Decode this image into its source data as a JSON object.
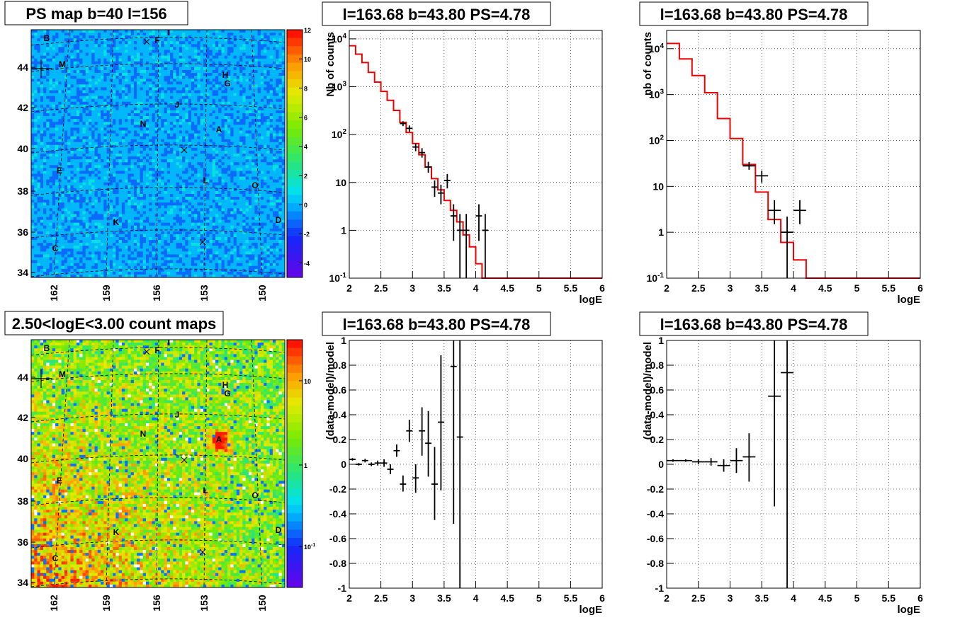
{
  "chart_data": [
    {
      "type": "heatmap",
      "title": "PS map b=40 l=156",
      "x_ticks": [
        "162",
        "159",
        "156",
        "153",
        "150"
      ],
      "y_ticks": [
        "44",
        "42",
        "40",
        "38",
        "36",
        "34"
      ],
      "colorbar_ticks": [
        "12",
        "10",
        "8",
        "6",
        "4",
        "2",
        "0",
        "-2",
        "-4"
      ],
      "colorbar_range": [
        -5,
        12
      ],
      "background_level": 0.35,
      "sources": [
        {
          "label": "B"
        },
        {
          "label": "I"
        },
        {
          "label": "F"
        },
        {
          "label": "M"
        },
        {
          "label": "H"
        },
        {
          "label": "G"
        },
        {
          "label": "J"
        },
        {
          "label": "N"
        },
        {
          "label": "A"
        },
        {
          "label": "E"
        },
        {
          "label": "L"
        },
        {
          "label": "O"
        },
        {
          "label": "K"
        },
        {
          "label": "D"
        },
        {
          "label": "C"
        }
      ]
    },
    {
      "type": "line",
      "title": "l=163.68 b=43.80 PS=4.78",
      "xlabel": "logE",
      "ylabel": "Nb of counts",
      "log_y": true,
      "xlim": [
        2,
        6
      ],
      "ylim": [
        0.1,
        15000
      ],
      "grid": true,
      "x_ticks": [
        "2",
        "2.5",
        "3",
        "3.5",
        "4",
        "4.5",
        "5",
        "5.5",
        "6"
      ],
      "y_ticks": [
        "10^4",
        "10^3",
        "10^2",
        "10",
        "1",
        "10^-1"
      ],
      "model_step": {
        "edges": [
          2.0,
          2.1,
          2.2,
          2.3,
          2.4,
          2.5,
          2.6,
          2.7,
          2.8,
          2.9,
          3.0,
          3.1,
          3.2,
          3.3,
          3.4,
          3.5,
          3.6,
          3.7,
          3.8,
          3.9,
          4.0,
          4.1,
          6.0
        ],
        "values": [
          7200,
          4800,
          3200,
          2000,
          1250,
          800,
          520,
          320,
          180,
          110,
          65,
          38,
          21,
          12,
          7,
          4.2,
          2.6,
          1.5,
          0.8,
          0.45,
          0.2,
          0.1
        ]
      },
      "data": [
        {
          "x": 2.85,
          "y": 170,
          "xerr": 0.05,
          "ylo": 150,
          "yhi": 190
        },
        {
          "x": 2.95,
          "y": 135,
          "xerr": 0.05,
          "ylo": 115,
          "yhi": 155
        },
        {
          "x": 3.05,
          "y": 55,
          "xerr": 0.05,
          "ylo": 45,
          "yhi": 65
        },
        {
          "x": 3.15,
          "y": 42,
          "xerr": 0.05,
          "ylo": 33,
          "yhi": 52
        },
        {
          "x": 3.25,
          "y": 21,
          "xerr": 0.05,
          "ylo": 16,
          "yhi": 27
        },
        {
          "x": 3.35,
          "y": 8,
          "xerr": 0.05,
          "ylo": 5,
          "yhi": 11
        },
        {
          "x": 3.45,
          "y": 6,
          "xerr": 0.05,
          "ylo": 3.5,
          "yhi": 9
        },
        {
          "x": 3.55,
          "y": 11,
          "xerr": 0.05,
          "ylo": 7.5,
          "yhi": 15
        },
        {
          "x": 3.65,
          "y": 2,
          "xerr": 0.05,
          "ylo": 0.6,
          "yhi": 3.5
        },
        {
          "x": 3.75,
          "y": 1,
          "xerr": 0.05,
          "ylo": 0.1,
          "yhi": 2.2
        },
        {
          "x": 3.85,
          "y": 1,
          "xerr": 0.05,
          "ylo": 0.1,
          "yhi": 2.2
        },
        {
          "x": 4.05,
          "y": 2,
          "xerr": 0.05,
          "ylo": 0.6,
          "yhi": 3.5
        },
        {
          "x": 4.15,
          "y": 1,
          "xerr": 0.05,
          "ylo": 0.1,
          "yhi": 2.2
        }
      ]
    },
    {
      "type": "line",
      "title": "l=163.68 b=43.80 PS=4.78",
      "xlabel": "logE",
      "ylabel": "nb of counts",
      "log_y": true,
      "xlim": [
        2,
        6
      ],
      "ylim": [
        0.1,
        25000
      ],
      "grid": true,
      "x_ticks": [
        "2",
        "2.5",
        "3",
        "3.5",
        "4",
        "4.5",
        "5",
        "5.5",
        "6"
      ],
      "y_ticks": [
        "10^4",
        "10^3",
        "10^2",
        "10",
        "1",
        "10^-1"
      ],
      "model_step": {
        "edges": [
          2.0,
          2.2,
          2.4,
          2.6,
          2.8,
          3.0,
          3.2,
          3.4,
          3.6,
          3.8,
          4.0,
          4.2,
          6.0
        ],
        "values": [
          13000,
          6000,
          2600,
          1100,
          300,
          110,
          30,
          7.5,
          1.9,
          0.6,
          0.25,
          0.1
        ]
      },
      "data": [
        {
          "x": 3.3,
          "y": 28,
          "xerr": 0.1,
          "ylo": 23,
          "yhi": 34
        },
        {
          "x": 3.5,
          "y": 17,
          "xerr": 0.1,
          "ylo": 12,
          "yhi": 22
        },
        {
          "x": 3.7,
          "y": 3,
          "xerr": 0.1,
          "ylo": 1.5,
          "yhi": 5
        },
        {
          "x": 3.9,
          "y": 1,
          "xerr": 0.1,
          "ylo": 0.1,
          "yhi": 2.2
        },
        {
          "x": 4.1,
          "y": 3,
          "xerr": 0.1,
          "ylo": 1.5,
          "yhi": 5
        }
      ]
    },
    {
      "type": "heatmap",
      "title": "2.50<logE<3.00 count maps",
      "x_ticks": [
        "162",
        "159",
        "156",
        "153",
        "150"
      ],
      "y_ticks": [
        "44",
        "42",
        "40",
        "38",
        "36",
        "34"
      ],
      "colorbar_ticks": [
        "10",
        "1",
        "10^-1"
      ],
      "colorbar_log": true,
      "sources": [
        {
          "label": "B"
        },
        {
          "label": "I"
        },
        {
          "label": "F"
        },
        {
          "label": "M"
        },
        {
          "label": "H"
        },
        {
          "label": "G"
        },
        {
          "label": "J"
        },
        {
          "label": "N"
        },
        {
          "label": "A"
        },
        {
          "label": "E"
        },
        {
          "label": "L"
        },
        {
          "label": "O"
        },
        {
          "label": "K"
        },
        {
          "label": "D"
        },
        {
          "label": "C"
        }
      ]
    },
    {
      "type": "scatter",
      "title": "l=163.68 b=43.80 PS=4.78",
      "xlabel": "logE",
      "ylabel": "(data-model)/model",
      "xlim": [
        2,
        6
      ],
      "ylim": [
        -1,
        1
      ],
      "grid": true,
      "x_ticks": [
        "2",
        "2.5",
        "3",
        "3.5",
        "4",
        "4.5",
        "5",
        "5.5",
        "6"
      ],
      "y_ticks": [
        "1",
        "0.8",
        "0.6",
        "0.4",
        "0.2",
        "0",
        "-0.2",
        "-0.4",
        "-0.6",
        "-0.8",
        "-1"
      ],
      "data": [
        {
          "x": 2.05,
          "y": 0.04,
          "xerr": 0.05,
          "ylo": 0.03,
          "yhi": 0.05
        },
        {
          "x": 2.15,
          "y": 0.0,
          "xerr": 0.05,
          "ylo": -0.01,
          "yhi": 0.01
        },
        {
          "x": 2.25,
          "y": 0.03,
          "xerr": 0.05,
          "ylo": 0.015,
          "yhi": 0.045
        },
        {
          "x": 2.35,
          "y": 0.0,
          "xerr": 0.05,
          "ylo": -0.015,
          "yhi": 0.015
        },
        {
          "x": 2.45,
          "y": 0.01,
          "xerr": 0.05,
          "ylo": -0.01,
          "yhi": 0.03
        },
        {
          "x": 2.55,
          "y": 0.01,
          "xerr": 0.05,
          "ylo": -0.02,
          "yhi": 0.04
        },
        {
          "x": 2.65,
          "y": -0.04,
          "xerr": 0.05,
          "ylo": -0.08,
          "yhi": 0.0
        },
        {
          "x": 2.75,
          "y": 0.11,
          "xerr": 0.05,
          "ylo": 0.06,
          "yhi": 0.16
        },
        {
          "x": 2.85,
          "y": -0.16,
          "xerr": 0.05,
          "ylo": -0.22,
          "yhi": -0.09
        },
        {
          "x": 2.95,
          "y": 0.27,
          "xerr": 0.05,
          "ylo": 0.18,
          "yhi": 0.36
        },
        {
          "x": 3.05,
          "y": -0.11,
          "xerr": 0.05,
          "ylo": -0.23,
          "yhi": 0.0
        },
        {
          "x": 3.15,
          "y": 0.27,
          "xerr": 0.05,
          "ylo": 0.07,
          "yhi": 0.46
        },
        {
          "x": 3.25,
          "y": 0.17,
          "xerr": 0.05,
          "ylo": -0.1,
          "yhi": 0.43
        },
        {
          "x": 3.35,
          "y": -0.16,
          "xerr": 0.05,
          "ylo": -0.45,
          "yhi": 0.14
        },
        {
          "x": 3.45,
          "y": 0.34,
          "xerr": 0.05,
          "ylo": -0.21,
          "yhi": 0.88
        },
        {
          "x": 3.65,
          "y": 0.79,
          "xerr": 0.05,
          "ylo": -0.48,
          "yhi": 1.0
        },
        {
          "x": 3.75,
          "y": 0.22,
          "xerr": 0.05,
          "ylo": -1.0,
          "yhi": 1.0
        }
      ]
    },
    {
      "type": "scatter",
      "title": "l=163.68 b=43.80 PS=4.78",
      "xlabel": "logE",
      "ylabel": "(data-model)/model",
      "xlim": [
        2,
        6
      ],
      "ylim": [
        -1,
        1
      ],
      "grid": true,
      "x_ticks": [
        "2",
        "2.5",
        "3",
        "3.5",
        "4",
        "4.5",
        "5",
        "5.5",
        "6"
      ],
      "y_ticks": [
        "1",
        "0.8",
        "0.6",
        "0.4",
        "0.2",
        "0",
        "-0.2",
        "-0.4",
        "-0.6",
        "-0.8",
        "-1"
      ],
      "data": [
        {
          "x": 2.1,
          "y": 0.03,
          "xerr": 0.1,
          "ylo": 0.02,
          "yhi": 0.04
        },
        {
          "x": 2.3,
          "y": 0.03,
          "xerr": 0.1,
          "ylo": 0.02,
          "yhi": 0.04
        },
        {
          "x": 2.5,
          "y": 0.02,
          "xerr": 0.1,
          "ylo": 0.0,
          "yhi": 0.04
        },
        {
          "x": 2.7,
          "y": 0.02,
          "xerr": 0.1,
          "ylo": -0.01,
          "yhi": 0.05
        },
        {
          "x": 2.9,
          "y": -0.01,
          "xerr": 0.1,
          "ylo": -0.06,
          "yhi": 0.04
        },
        {
          "x": 3.1,
          "y": 0.03,
          "xerr": 0.1,
          "ylo": -0.07,
          "yhi": 0.13
        },
        {
          "x": 3.3,
          "y": 0.06,
          "xerr": 0.1,
          "ylo": -0.14,
          "yhi": 0.25
        },
        {
          "x": 3.7,
          "y": 0.55,
          "xerr": 0.1,
          "ylo": -0.34,
          "yhi": 1.0
        },
        {
          "x": 3.9,
          "y": 0.74,
          "xerr": 0.1,
          "ylo": -1.0,
          "yhi": 1.0
        }
      ]
    }
  ]
}
